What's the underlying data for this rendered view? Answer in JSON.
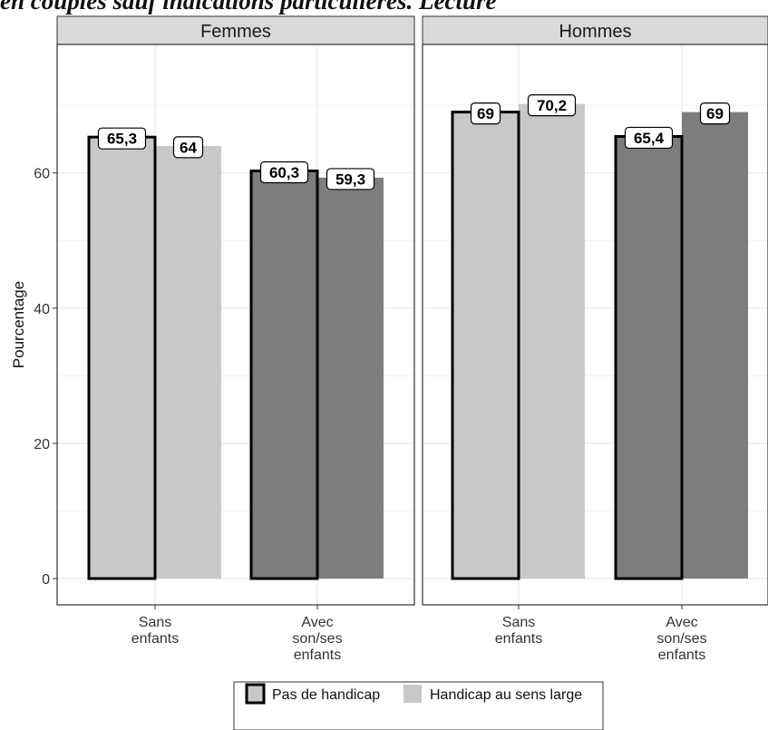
{
  "title_partial": "en couples sauf indications particulières. Lecture",
  "chart_data": {
    "type": "bar",
    "ylabel": "Pourcentage",
    "ylim": [
      0,
      76
    ],
    "yticks": [
      0,
      20,
      40,
      60
    ],
    "grid": true,
    "legend_position": "bottom",
    "categories": [
      "Sans\nenfants",
      "Avec\nson/ses\nenfants"
    ],
    "series_names": [
      "Pas de handicap",
      "Handicap au sens large"
    ],
    "panels": [
      {
        "name": "Femmes",
        "series": [
          {
            "name": "Pas de handicap",
            "values": [
              65.3,
              60.3
            ],
            "labels": [
              "65,3",
              "60,3"
            ]
          },
          {
            "name": "Handicap au sens large",
            "values": [
              64,
              59.3
            ],
            "labels": [
              "64",
              "59,3"
            ]
          }
        ]
      },
      {
        "name": "Hommes",
        "series": [
          {
            "name": "Pas de handicap",
            "values": [
              69,
              65.4
            ],
            "labels": [
              "69",
              "65,4"
            ]
          },
          {
            "name": "Handicap au sens large",
            "values": [
              70.2,
              69
            ],
            "labels": [
              "70,2",
              "69"
            ]
          }
        ]
      }
    ],
    "colors": {
      "category_fill": [
        "#c8c8c8",
        "#7d7d7d"
      ],
      "panel_bg": "#ffffff",
      "strip_bg": "#d9d9d9",
      "grid": "#ebebeb",
      "frame": "#333333"
    }
  }
}
